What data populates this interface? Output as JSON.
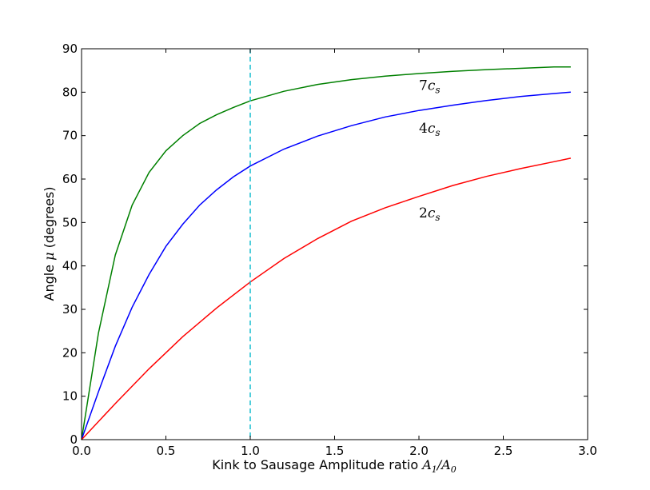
{
  "chart_data": {
    "type": "line",
    "xlabel": {
      "text": "Kink to Sausage Amplitude ratio ",
      "math_main": "A",
      "math_sub1": "1",
      "math_sep": "/",
      "math_main2": "A",
      "math_sub2": "0"
    },
    "ylabel": {
      "text": "Angle ",
      "math": "μ",
      "suffix": " (degrees)"
    },
    "xlim": [
      0.0,
      3.0
    ],
    "ylim": [
      0,
      90
    ],
    "xticks": [
      0.0,
      0.5,
      1.0,
      1.5,
      2.0,
      2.5,
      3.0
    ],
    "xtick_labels": [
      "0.0",
      "0.5",
      "1.0",
      "1.5",
      "2.0",
      "2.5",
      "3.0"
    ],
    "yticks": [
      0,
      10,
      20,
      30,
      40,
      50,
      60,
      70,
      80,
      90
    ],
    "ytick_labels": [
      "0",
      "10",
      "20",
      "30",
      "40",
      "50",
      "60",
      "70",
      "80",
      "90"
    ],
    "grid": false,
    "vline": {
      "x": 1.0,
      "color": "#17becf",
      "style": "dashed"
    },
    "series": [
      {
        "label_main": "7c",
        "label_sub": "s",
        "color": "#008000",
        "label_at": [
          2.0,
          80.5
        ],
        "x": [
          0.0,
          0.1,
          0.2,
          0.3,
          0.4,
          0.5,
          0.6,
          0.7,
          0.8,
          0.9,
          1.0,
          1.2,
          1.4,
          1.6,
          1.8,
          2.0,
          2.2,
          2.4,
          2.6,
          2.8,
          2.9
        ],
        "y": [
          0,
          24.5,
          42.5,
          54,
          61.5,
          66.5,
          70,
          72.8,
          74.8,
          76.5,
          78,
          80.2,
          81.8,
          82.9,
          83.7,
          84.3,
          84.8,
          85.2,
          85.5,
          85.8,
          85.8
        ]
      },
      {
        "label_main": "4c",
        "label_sub": "s",
        "color": "#0000ff",
        "label_at": [
          2.0,
          70.7
        ],
        "x": [
          0.0,
          0.1,
          0.2,
          0.3,
          0.4,
          0.5,
          0.6,
          0.7,
          0.8,
          0.9,
          1.0,
          1.2,
          1.4,
          1.6,
          1.8,
          2.0,
          2.2,
          2.4,
          2.6,
          2.8,
          2.9
        ],
        "y": [
          0,
          11,
          21.5,
          30.5,
          38,
          44.5,
          49.6,
          54,
          57.5,
          60.5,
          63,
          66.9,
          69.9,
          72.3,
          74.3,
          75.8,
          77,
          78.1,
          79,
          79.7,
          80
        ]
      },
      {
        "label_main": "2c",
        "label_sub": "s",
        "color": "#ff0000",
        "label_at": [
          2.0,
          51.2
        ],
        "x": [
          0.0,
          0.2,
          0.4,
          0.6,
          0.8,
          1.0,
          1.2,
          1.4,
          1.6,
          1.8,
          2.0,
          2.2,
          2.4,
          2.6,
          2.8,
          2.9
        ],
        "y": [
          0,
          8.3,
          16.3,
          23.7,
          30.3,
          36.3,
          41.7,
          46.3,
          50.3,
          53.4,
          56,
          58.5,
          60.6,
          62.4,
          64,
          64.8
        ]
      }
    ]
  }
}
